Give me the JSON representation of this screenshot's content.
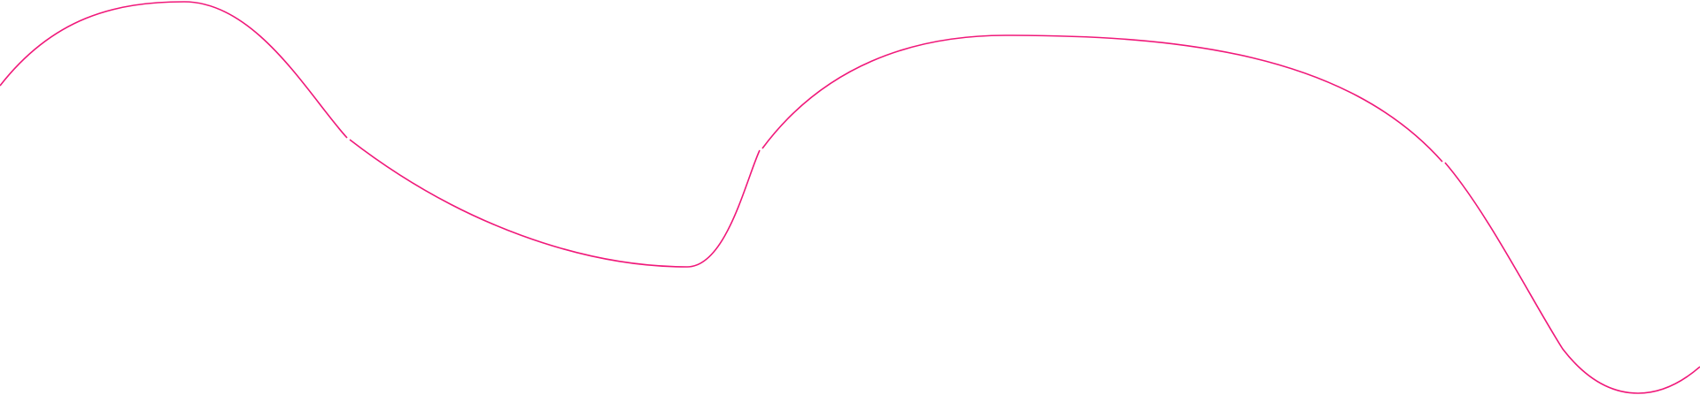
{
  "decoration": {
    "type": "wavy-line",
    "stroke_color": "#f0197a",
    "background_color": "#ffffff",
    "segment_count": 4
  }
}
